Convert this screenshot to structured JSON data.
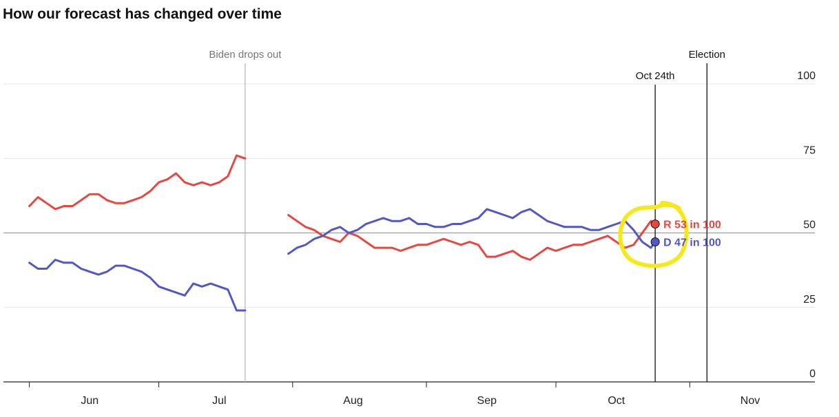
{
  "chart_data": {
    "type": "line",
    "title": "How our forecast has changed over time",
    "xlabel": "",
    "ylabel": "",
    "ylim": [
      0,
      100
    ],
    "xlim": [
      "2024-05-26",
      "2024-11-30"
    ],
    "yticks": [
      0,
      25,
      50,
      75,
      100
    ],
    "grid": true,
    "x_ticks": [
      {
        "label": "Jun",
        "date": "2024-06-15"
      },
      {
        "label": "Jul",
        "date": "2024-07-15"
      },
      {
        "label": "Aug",
        "date": "2024-08-15"
      },
      {
        "label": "Sep",
        "date": "2024-09-15"
      },
      {
        "label": "Oct",
        "date": "2024-10-15"
      },
      {
        "label": "Nov",
        "date": "2024-11-15"
      }
    ],
    "x_boundaries": [
      "2024-06-01",
      "2024-07-01",
      "2024-08-01",
      "2024-09-01",
      "2024-10-01",
      "2024-11-01",
      "2024-12-01"
    ],
    "annotations": [
      {
        "label": "Biden drops out",
        "date": "2024-07-21",
        "style": "gray"
      },
      {
        "label": "Oct 24th",
        "date": "2024-10-24",
        "style": "black"
      },
      {
        "label": "Election",
        "date": "2024-11-05",
        "style": "black"
      }
    ],
    "series": [
      {
        "party": "R",
        "color": "#e8473f",
        "end_value": 53,
        "end_label": "R 53 in 100",
        "segments": [
          {
            "x": [
              "2024-06-01",
              "2024-06-03",
              "2024-06-05",
              "2024-06-07",
              "2024-06-09",
              "2024-06-11",
              "2024-06-13",
              "2024-06-15",
              "2024-06-17",
              "2024-06-19",
              "2024-06-21",
              "2024-06-23",
              "2024-06-25",
              "2024-06-27",
              "2024-06-29",
              "2024-07-01",
              "2024-07-03",
              "2024-07-05",
              "2024-07-07",
              "2024-07-09",
              "2024-07-11",
              "2024-07-13",
              "2024-07-15",
              "2024-07-17",
              "2024-07-19",
              "2024-07-21"
            ],
            "y": [
              59,
              62,
              60,
              58,
              59,
              59,
              61,
              63,
              63,
              61,
              60,
              60,
              61,
              62,
              64,
              67,
              68,
              70,
              67,
              66,
              67,
              66,
              67,
              69,
              76,
              75
            ]
          },
          {
            "x": [
              "2024-07-31",
              "2024-08-02",
              "2024-08-04",
              "2024-08-06",
              "2024-08-08",
              "2024-08-10",
              "2024-08-12",
              "2024-08-14",
              "2024-08-16",
              "2024-08-18",
              "2024-08-20",
              "2024-08-22",
              "2024-08-24",
              "2024-08-26",
              "2024-08-28",
              "2024-08-30",
              "2024-09-01",
              "2024-09-03",
              "2024-09-05",
              "2024-09-07",
              "2024-09-09",
              "2024-09-11",
              "2024-09-13",
              "2024-09-15",
              "2024-09-17",
              "2024-09-19",
              "2024-09-21",
              "2024-09-23",
              "2024-09-25",
              "2024-09-27",
              "2024-09-29",
              "2024-10-01",
              "2024-10-03",
              "2024-10-05",
              "2024-10-07",
              "2024-10-09",
              "2024-10-11",
              "2024-10-13",
              "2024-10-15",
              "2024-10-17",
              "2024-10-19",
              "2024-10-21",
              "2024-10-23",
              "2024-10-24"
            ],
            "y": [
              56,
              54,
              52,
              51,
              49,
              48,
              47,
              50,
              49,
              47,
              45,
              45,
              45,
              44,
              45,
              46,
              46,
              47,
              48,
              47,
              46,
              47,
              46,
              42,
              42,
              43,
              44,
              42,
              41,
              43,
              45,
              44,
              45,
              46,
              46,
              47,
              48,
              49,
              47,
              45,
              46,
              50,
              54,
              53
            ]
          }
        ]
      },
      {
        "party": "D",
        "color": "#5058c9",
        "end_value": 47,
        "end_label": "D 47 in 100",
        "segments": [
          {
            "x": [
              "2024-06-01",
              "2024-06-03",
              "2024-06-05",
              "2024-06-07",
              "2024-06-09",
              "2024-06-11",
              "2024-06-13",
              "2024-06-15",
              "2024-06-17",
              "2024-06-19",
              "2024-06-21",
              "2024-06-23",
              "2024-06-25",
              "2024-06-27",
              "2024-06-29",
              "2024-07-01",
              "2024-07-03",
              "2024-07-05",
              "2024-07-07",
              "2024-07-09",
              "2024-07-11",
              "2024-07-13",
              "2024-07-15",
              "2024-07-17",
              "2024-07-19",
              "2024-07-21"
            ],
            "y": [
              40,
              38,
              38,
              41,
              40,
              40,
              38,
              37,
              36,
              37,
              39,
              39,
              38,
              37,
              35,
              32,
              31,
              30,
              29,
              33,
              32,
              33,
              32,
              31,
              24,
              24
            ]
          },
          {
            "x": [
              "2024-07-31",
              "2024-08-02",
              "2024-08-04",
              "2024-08-06",
              "2024-08-08",
              "2024-08-10",
              "2024-08-12",
              "2024-08-14",
              "2024-08-16",
              "2024-08-18",
              "2024-08-20",
              "2024-08-22",
              "2024-08-24",
              "2024-08-26",
              "2024-08-28",
              "2024-08-30",
              "2024-09-01",
              "2024-09-03",
              "2024-09-05",
              "2024-09-07",
              "2024-09-09",
              "2024-09-11",
              "2024-09-13",
              "2024-09-15",
              "2024-09-17",
              "2024-09-19",
              "2024-09-21",
              "2024-09-23",
              "2024-09-25",
              "2024-09-27",
              "2024-09-29",
              "2024-10-01",
              "2024-10-03",
              "2024-10-05",
              "2024-10-07",
              "2024-10-09",
              "2024-10-11",
              "2024-10-13",
              "2024-10-15",
              "2024-10-17",
              "2024-10-19",
              "2024-10-21",
              "2024-10-23",
              "2024-10-24"
            ],
            "y": [
              43,
              45,
              46,
              48,
              49,
              51,
              52,
              50,
              51,
              53,
              54,
              55,
              54,
              54,
              55,
              53,
              53,
              52,
              52,
              53,
              53,
              54,
              55,
              58,
              57,
              56,
              55,
              57,
              58,
              56,
              54,
              53,
              52,
              52,
              52,
              51,
              51,
              52,
              53,
              54,
              51,
              47,
              45,
              47
            ]
          }
        ]
      }
    ],
    "highlight": {
      "shape": "hand-drawn-circle",
      "color": "#f5e81c",
      "target_date": "2024-10-24"
    }
  }
}
